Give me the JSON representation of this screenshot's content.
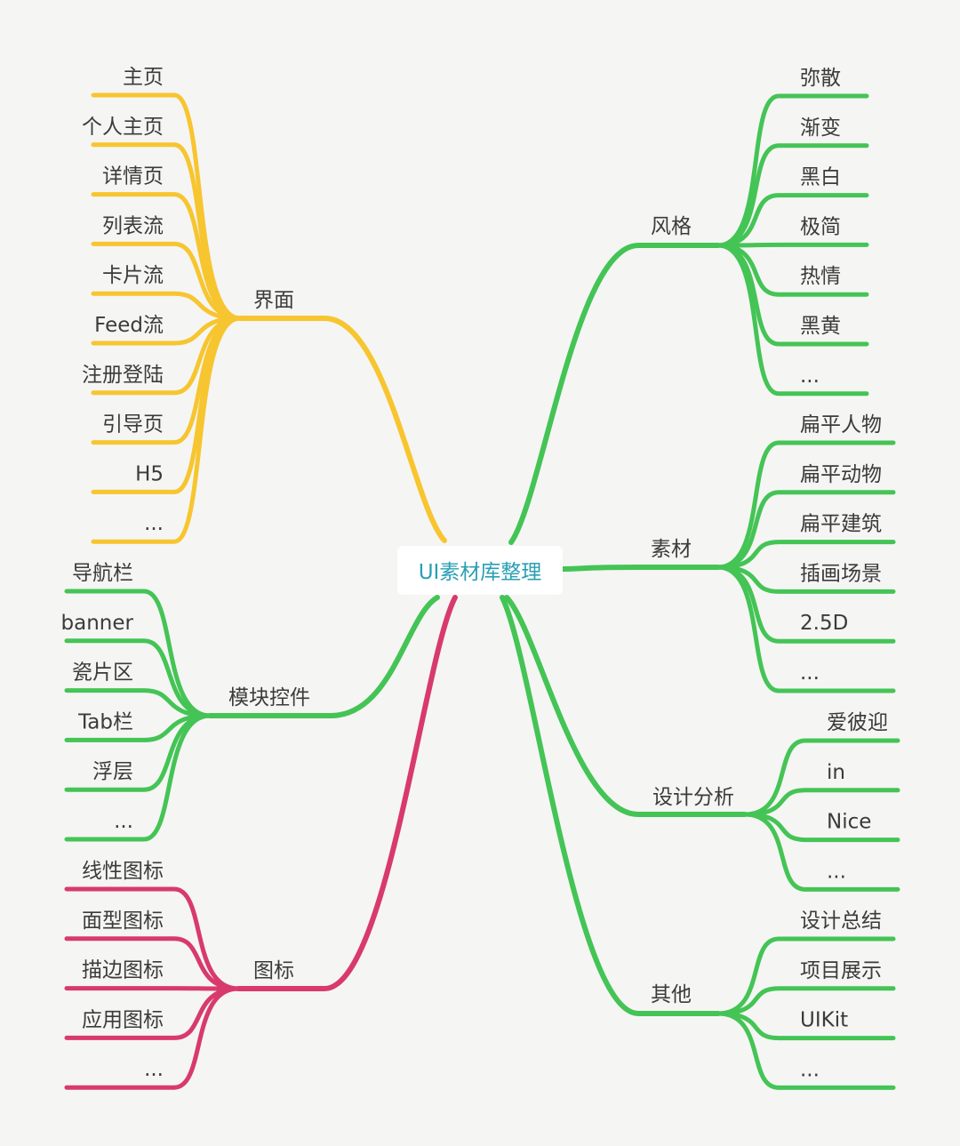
{
  "root": {
    "label": "UI素材库整理"
  },
  "colors": {
    "yellow": "#f7c52f",
    "green": "#44c455",
    "red": "#d83a6d"
  },
  "branches": [
    {
      "label": "界面",
      "color": "yellow",
      "children": [
        "主页",
        "个人主页",
        "详情页",
        "列表流",
        "卡片流",
        "Feed流",
        "注册登陆",
        "引导页",
        "H5",
        "..."
      ]
    },
    {
      "label": "模块控件",
      "color": "green",
      "children": [
        "导航栏",
        "banner",
        "瓷片区",
        "Tab栏",
        "浮层",
        "..."
      ]
    },
    {
      "label": "图标",
      "color": "red",
      "children": [
        "线性图标",
        "面型图标",
        "描边图标",
        "应用图标",
        "..."
      ]
    },
    {
      "label": "风格",
      "color": "green",
      "children": [
        "弥散",
        "渐变",
        "黑白",
        "极简",
        "热情",
        "黑黄",
        "..."
      ]
    },
    {
      "label": "素材",
      "color": "green",
      "children": [
        "扁平人物",
        "扁平动物",
        "扁平建筑",
        "插画场景",
        "2.5D",
        "..."
      ]
    },
    {
      "label": "设计分析",
      "color": "green",
      "children": [
        "爱彼迎",
        "in",
        "Nice",
        "..."
      ]
    },
    {
      "label": "其他",
      "color": "green",
      "children": [
        "设计总结",
        "项目展示",
        "UIKit",
        "..."
      ]
    }
  ]
}
